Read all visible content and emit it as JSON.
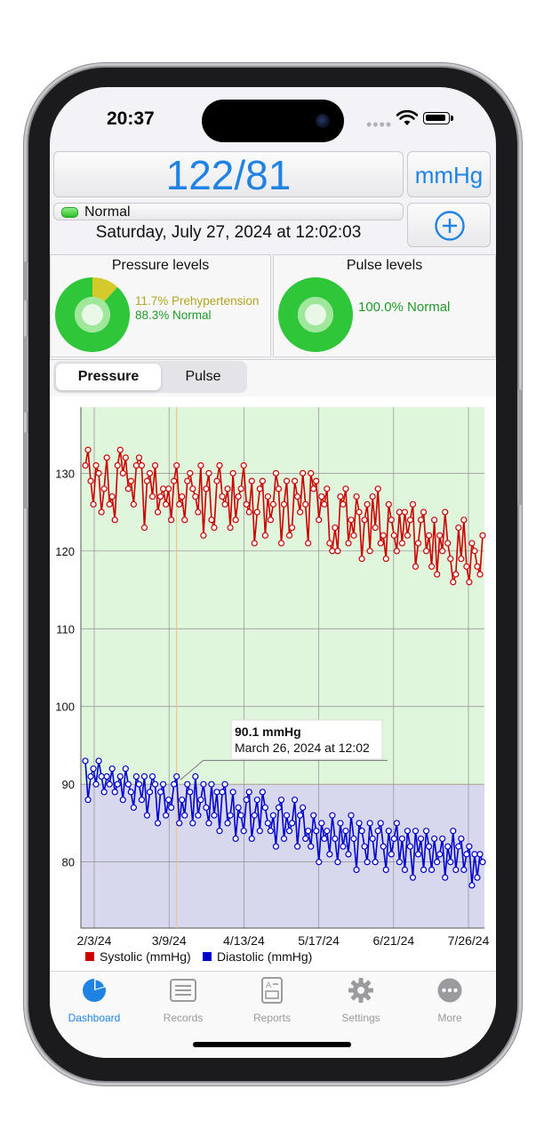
{
  "status": {
    "time": "20:37"
  },
  "reading": {
    "value": "122/81",
    "unit": "mmHg"
  },
  "category": {
    "label": "Normal",
    "color": "#2ebd26"
  },
  "measured_at": "Saturday, July 27, 2024 at 12:02:03",
  "pressure_levels": {
    "title": "Pressure levels",
    "slices": [
      {
        "label": "11.7% Prehypertension",
        "value": 11.7,
        "color": "#d6c92b"
      },
      {
        "label": "88.3% Normal",
        "value": 88.3,
        "color": "#2fc63a"
      }
    ]
  },
  "pulse_levels": {
    "title": "Pulse levels",
    "slices": [
      {
        "label": "100.0% Normal",
        "value": 100.0,
        "color": "#2fc63a"
      }
    ]
  },
  "segments": {
    "options": [
      "Pressure",
      "Pulse"
    ],
    "selected": "Pressure"
  },
  "tooltip": {
    "value": "90.1 mmHg",
    "date": "March 26, 2024 at 12:02"
  },
  "tabs": [
    {
      "label": "Dashboard",
      "icon": "dashboard-pie-icon",
      "active": true
    },
    {
      "label": "Records",
      "icon": "records-list-icon",
      "active": false
    },
    {
      "label": "Reports",
      "icon": "reports-doc-icon",
      "active": false
    },
    {
      "label": "Settings",
      "icon": "gear-icon",
      "active": false
    },
    {
      "label": "More",
      "icon": "more-dots-icon",
      "active": false
    }
  ],
  "chart_data": {
    "type": "line",
    "x_ticks": [
      "2/3/24",
      "3/9/24",
      "4/13/24",
      "5/17/24",
      "6/21/24",
      "7/26/24"
    ],
    "y_ticks": [
      80,
      90,
      100,
      110,
      120,
      130
    ],
    "ylim": [
      71.5,
      138.5
    ],
    "bands": [
      {
        "name": "normal",
        "from": 90,
        "to": 138.5,
        "color": "#dff5dc"
      },
      {
        "name": "diastolic-zone",
        "from": 71.5,
        "to": 90,
        "color": "#d7d8ee"
      }
    ],
    "series": [
      {
        "name": "Systolic (mmHg)",
        "color": "#cc0000",
        "values": [
          131,
          133,
          129,
          126,
          131,
          130,
          125,
          128,
          132,
          126,
          127,
          124,
          131,
          133,
          130,
          132,
          128,
          129,
          126,
          131,
          132,
          131,
          123,
          129,
          130,
          127,
          131,
          125,
          127,
          128,
          126,
          128,
          124,
          129,
          131,
          126,
          127,
          124,
          129,
          130,
          128,
          127,
          125,
          131,
          122,
          128,
          130,
          124,
          123,
          129,
          131,
          127,
          126,
          128,
          123,
          130,
          124,
          127,
          128,
          131,
          126,
          125,
          129,
          121,
          125,
          128,
          129,
          122,
          127,
          124,
          126,
          130,
          128,
          121,
          126,
          129,
          122,
          123,
          129,
          127,
          125,
          130,
          126,
          121,
          130,
          128,
          129,
          124,
          127,
          126,
          128,
          121,
          120,
          123,
          120,
          127,
          126,
          128,
          121,
          124,
          122,
          127,
          125,
          119,
          124,
          126,
          120,
          127,
          123,
          128,
          121,
          122,
          119,
          126,
          124,
          122,
          120,
          125,
          121,
          125,
          122,
          124,
          126,
          118,
          121,
          124,
          125,
          120,
          122,
          118,
          124,
          117,
          122,
          120,
          125,
          121,
          119,
          116,
          117,
          123,
          119,
          124,
          118,
          116,
          121,
          120,
          118,
          117,
          122
        ]
      },
      {
        "name": "Diastolic (mmHg)",
        "color": "#0000cc",
        "values": [
          93,
          88,
          91,
          92,
          90,
          93,
          91,
          89,
          91,
          90,
          92,
          89,
          90,
          91,
          88,
          92,
          90,
          89,
          87,
          91,
          90,
          88,
          91,
          86,
          89,
          91,
          90,
          85,
          89,
          90,
          86,
          88,
          87,
          90,
          91,
          85,
          88,
          86,
          90,
          89,
          85,
          91,
          86,
          88,
          90,
          87,
          85,
          90,
          86,
          89,
          84,
          89,
          90,
          85,
          86,
          89,
          83,
          87,
          86,
          84,
          88,
          89,
          83,
          86,
          88,
          84,
          89,
          87,
          85,
          84,
          86,
          82,
          87,
          88,
          83,
          86,
          84,
          85,
          88,
          82,
          86,
          87,
          83,
          84,
          82,
          86,
          84,
          80,
          85,
          83,
          84,
          81,
          86,
          83,
          80,
          85,
          82,
          84,
          81,
          86,
          83,
          79,
          85,
          84,
          82,
          80,
          85,
          83,
          80,
          84,
          85,
          82,
          79,
          84,
          81,
          83,
          85,
          80,
          83,
          79,
          84,
          82,
          78,
          84,
          81,
          83,
          79,
          84,
          82,
          79,
          83,
          80,
          81,
          83,
          78,
          82,
          80,
          84,
          79,
          82,
          83,
          79,
          81,
          82,
          77,
          81,
          78,
          81,
          80
        ]
      }
    ]
  }
}
